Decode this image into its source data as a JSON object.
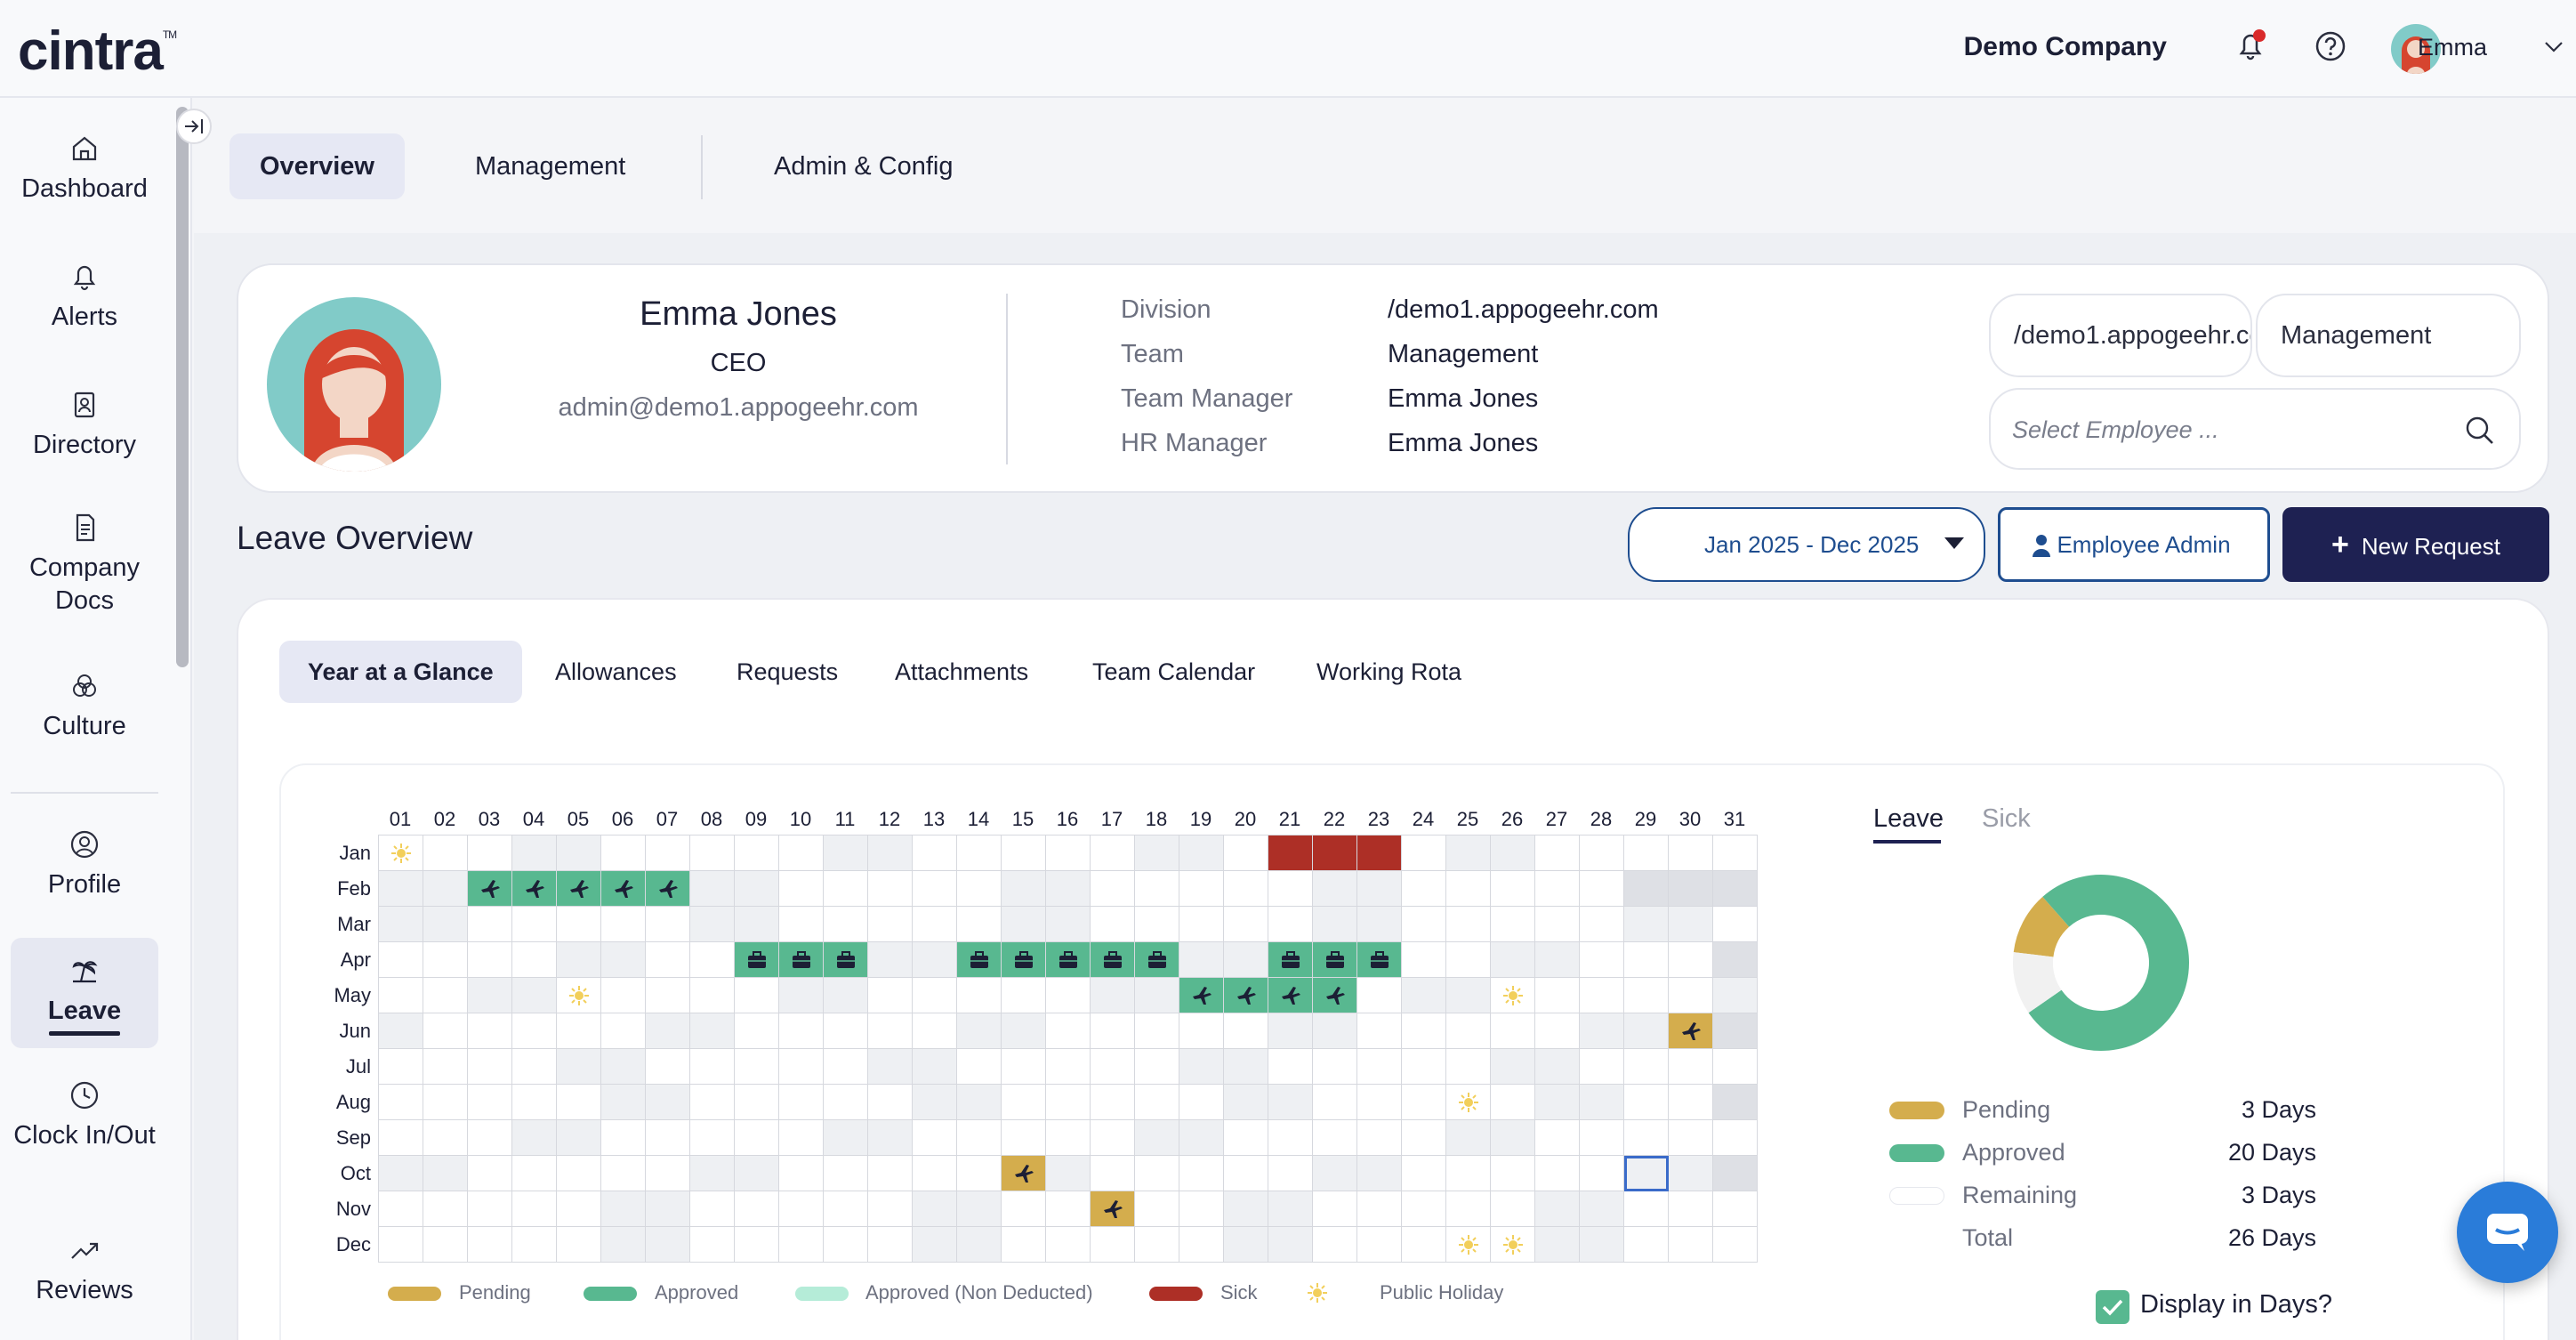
{
  "app": {
    "logo": "cintra",
    "tm": "TM"
  },
  "header": {
    "company": "Demo Company",
    "user": "Emma"
  },
  "sidebar": {
    "items": [
      {
        "label": "Dashboard"
      },
      {
        "label": "Alerts"
      },
      {
        "label": "Directory"
      },
      {
        "label": "Company Docs"
      },
      {
        "label": "Culture"
      },
      {
        "label": "Profile"
      },
      {
        "label": "Leave"
      },
      {
        "label": "Clock In/Out"
      },
      {
        "label": "Reviews"
      }
    ]
  },
  "tabs": [
    {
      "label": "Overview"
    },
    {
      "label": "Management"
    },
    {
      "label": "Admin & Config"
    }
  ],
  "profile": {
    "name": "Emma Jones",
    "title": "CEO",
    "email": "admin@demo1.appogeehr.com",
    "details": [
      {
        "label": "Division",
        "value": "/demo1.appogeehr.com"
      },
      {
        "label": "Team",
        "value": "Management"
      },
      {
        "label": "Team Manager",
        "value": "Emma Jones"
      },
      {
        "label": "HR Manager",
        "value": "Emma Jones"
      }
    ],
    "filter_division": "/demo1.appogeehr.com",
    "filter_team": "Management",
    "search_placeholder": "Select Employee ..."
  },
  "leave": {
    "title": "Leave Overview",
    "date_range": "Jan 2025 - Dec 2025",
    "employee_admin": "Employee Admin",
    "new_request": "New Request",
    "subtabs": [
      "Year at a Glance",
      "Allowances",
      "Requests",
      "Attachments",
      "Team Calendar",
      "Working Rota"
    ]
  },
  "calendar": {
    "days": [
      "01",
      "02",
      "03",
      "04",
      "05",
      "06",
      "07",
      "08",
      "09",
      "10",
      "11",
      "12",
      "13",
      "14",
      "15",
      "16",
      "17",
      "18",
      "19",
      "20",
      "21",
      "22",
      "23",
      "24",
      "25",
      "26",
      "27",
      "28",
      "29",
      "30",
      "31"
    ],
    "months": [
      "Jan",
      "Feb",
      "Mar",
      "Apr",
      "May",
      "Jun",
      "Jul",
      "Aug",
      "Sep",
      "Oct",
      "Nov",
      "Dec"
    ],
    "legend": [
      "Pending",
      "Approved",
      "Approved (Non Deducted)",
      "Sick",
      "Public Holiday"
    ]
  },
  "summary": {
    "tabs": [
      "Leave",
      "Sick"
    ],
    "rows": [
      {
        "label": "Pending",
        "value": "3 Days",
        "color": "#d4ad4d"
      },
      {
        "label": "Approved",
        "value": "20 Days",
        "color": "#58b890"
      },
      {
        "label": "Remaining",
        "value": "3 Days",
        "color": "#ffffff"
      },
      {
        "label": "Total",
        "value": "26 Days"
      }
    ],
    "display_in_days": "Display in Days?"
  },
  "chart_data": {
    "type": "pie",
    "categories": [
      "Pending",
      "Approved",
      "Remaining"
    ],
    "values": [
      3,
      20,
      3
    ],
    "colors": [
      "#d4ad4d",
      "#58b890",
      "#f1f1f1"
    ],
    "title": "",
    "donut": true
  },
  "colors": {
    "brand_dark": "#1e2152",
    "accent_blue": "#1e4d8f",
    "pending": "#d4ad4d",
    "approved": "#58b890",
    "approved_non_deducted": "#b5ecd8",
    "sick": "#ad2f26",
    "holiday": "#f2cf5b"
  }
}
